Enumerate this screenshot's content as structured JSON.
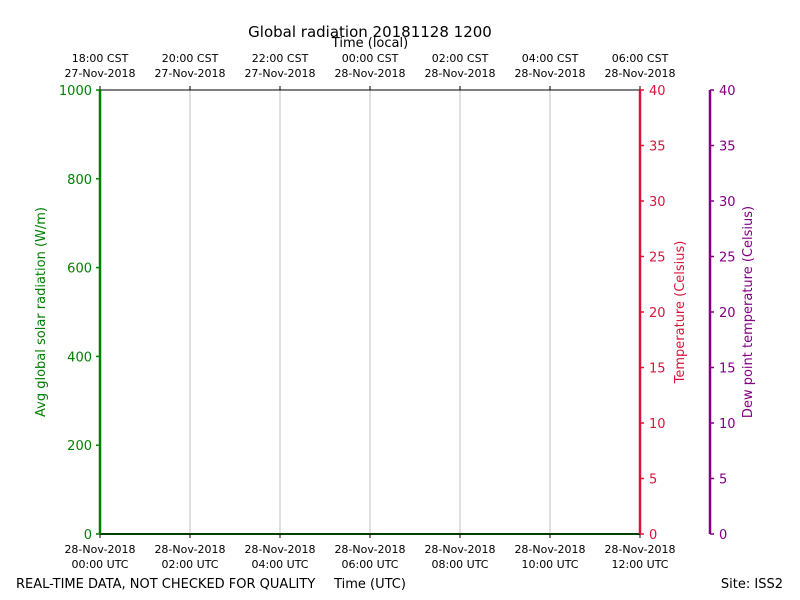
{
  "chart_data": {
    "type": "line",
    "title": "Global radiation 20181128 1200",
    "top_axis_label": "Time (local)",
    "xlabel": "Time (UTC)",
    "ylabel": "Avg global solar radiation (W/m)",
    "ylabel_right": "Temperature (Celsius)",
    "ylabel_far_right": "Dew point temperature (Celsius)",
    "x_ticks_local": [
      {
        "time": "18:00 CST",
        "date": "27-Nov-2018"
      },
      {
        "time": "20:00 CST",
        "date": "27-Nov-2018"
      },
      {
        "time": "22:00 CST",
        "date": "27-Nov-2018"
      },
      {
        "time": "00:00 CST",
        "date": "28-Nov-2018"
      },
      {
        "time": "02:00 CST",
        "date": "28-Nov-2018"
      },
      {
        "time": "04:00 CST",
        "date": "28-Nov-2018"
      },
      {
        "time": "06:00 CST",
        "date": "28-Nov-2018"
      }
    ],
    "x_ticks_utc": [
      {
        "date": "28-Nov-2018",
        "time": "00:00 UTC"
      },
      {
        "date": "28-Nov-2018",
        "time": "02:00 UTC"
      },
      {
        "date": "28-Nov-2018",
        "time": "04:00 UTC"
      },
      {
        "date": "28-Nov-2018",
        "time": "06:00 UTC"
      },
      {
        "date": "28-Nov-2018",
        "time": "08:00 UTC"
      },
      {
        "date": "28-Nov-2018",
        "time": "10:00 UTC"
      },
      {
        "date": "28-Nov-2018",
        "time": "12:00 UTC"
      }
    ],
    "xlim": [
      "28-Nov-2018 00:00 UTC",
      "28-Nov-2018 12:00 UTC"
    ],
    "ylim": [
      0,
      1000
    ],
    "yticks": [
      0,
      200,
      400,
      600,
      800,
      1000
    ],
    "ylim_right": [
      0,
      40
    ],
    "yticks_right": [
      0,
      5,
      10,
      15,
      20,
      25,
      30,
      35,
      40
    ],
    "ylim_far_right": [
      0,
      40
    ],
    "yticks_far_right": [
      0,
      5,
      10,
      15,
      20,
      25,
      30,
      35,
      40
    ],
    "grid": "vertical",
    "series": [
      {
        "name": "",
        "values": [
          0,
          0
        ],
        "x": [
          "28-Nov-2018 00:00 UTC",
          "28-Nov-2018 12:00 UTC"
        ]
      }
    ],
    "colors": {
      "radiation": "#008000",
      "temperature": "#dc143c",
      "dewpoint": "#800080",
      "grid": "#b0b0b0",
      "frame": "#000000"
    }
  },
  "footer": {
    "disclaimer": "REAL-TIME DATA, NOT CHECKED FOR QUALITY",
    "site": "Site: ISS2"
  }
}
